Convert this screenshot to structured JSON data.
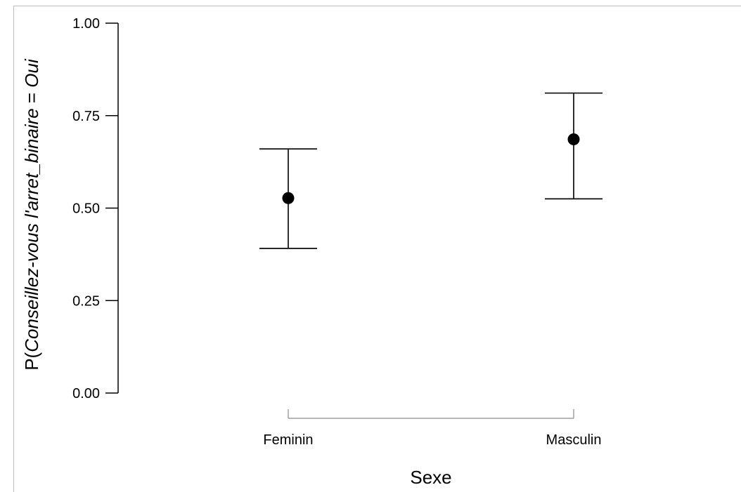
{
  "chart_data": {
    "type": "scatter",
    "xlabel": "Sexe",
    "ylabel": {
      "prefix": "P(",
      "variable": "Conseillez-vous l'arret_binaire",
      "equals": " = ",
      "level": "Oui"
    },
    "categories": [
      "Feminin",
      "Masculin"
    ],
    "ylim": [
      0,
      1
    ],
    "yticks": [
      0,
      0.25,
      0.5,
      0.75,
      1
    ],
    "ytick_labels": [
      "0.00",
      "0.25",
      "0.50",
      "0.75",
      "1.00"
    ],
    "points": [
      {
        "category": "Feminin",
        "estimate": 0.527,
        "lower": 0.391,
        "upper": 0.66
      },
      {
        "category": "Masculin",
        "estimate": 0.686,
        "lower": 0.525,
        "upper": 0.811
      }
    ],
    "grid": false,
    "legend": "none",
    "colors": {
      "points": "#000000",
      "error_bars": "#1a1a1a",
      "x_axis": "#8a8a8a"
    }
  }
}
